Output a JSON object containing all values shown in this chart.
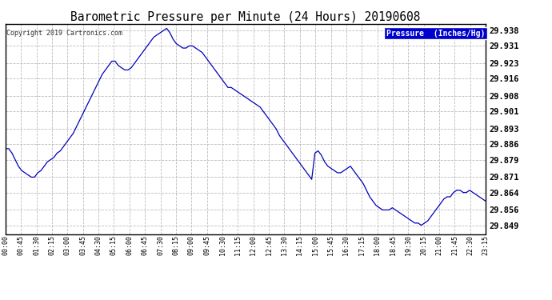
{
  "title": "Barometric Pressure per Minute (24 Hours) 20190608",
  "copyright_text": "Copyright 2019 Cartronics.com",
  "legend_label": "Pressure  (Inches/Hg)",
  "line_color": "#0000bb",
  "background_color": "#ffffff",
  "grid_color": "#bbbbbb",
  "yticks": [
    29.938,
    29.931,
    29.923,
    29.916,
    29.908,
    29.901,
    29.893,
    29.886,
    29.879,
    29.871,
    29.864,
    29.856,
    29.849
  ],
  "ylim": [
    29.845,
    29.941
  ],
  "xtick_labels": [
    "00:00",
    "00:45",
    "01:30",
    "02:15",
    "03:00",
    "03:45",
    "04:30",
    "05:15",
    "06:00",
    "06:45",
    "07:30",
    "08:15",
    "09:00",
    "09:45",
    "10:30",
    "11:15",
    "12:00",
    "12:45",
    "13:30",
    "14:15",
    "15:00",
    "15:45",
    "16:30",
    "17:15",
    "18:00",
    "18:45",
    "19:30",
    "20:15",
    "21:00",
    "21:45",
    "22:30",
    "23:15"
  ],
  "pressure_values": [
    29.884,
    29.884,
    29.882,
    29.879,
    29.876,
    29.874,
    29.873,
    29.872,
    29.871,
    29.871,
    29.873,
    29.874,
    29.876,
    29.878,
    29.879,
    29.88,
    29.882,
    29.883,
    29.885,
    29.887,
    29.889,
    29.891,
    29.894,
    29.897,
    29.9,
    29.903,
    29.906,
    29.909,
    29.912,
    29.915,
    29.918,
    29.92,
    29.922,
    29.924,
    29.924,
    29.922,
    29.921,
    29.92,
    29.92,
    29.921,
    29.923,
    29.925,
    29.927,
    29.929,
    29.931,
    29.933,
    29.935,
    29.936,
    29.937,
    29.938,
    29.939,
    29.937,
    29.934,
    29.932,
    29.931,
    29.93,
    29.93,
    29.931,
    29.931,
    29.93,
    29.929,
    29.928,
    29.926,
    29.924,
    29.922,
    29.92,
    29.918,
    29.916,
    29.914,
    29.912,
    29.912,
    29.911,
    29.91,
    29.909,
    29.908,
    29.907,
    29.906,
    29.905,
    29.904,
    29.903,
    29.901,
    29.899,
    29.897,
    29.895,
    29.893,
    29.89,
    29.888,
    29.886,
    29.884,
    29.882,
    29.88,
    29.878,
    29.876,
    29.874,
    29.872,
    29.87,
    29.882,
    29.883,
    29.881,
    29.878,
    29.876,
    29.875,
    29.874,
    29.873,
    29.873,
    29.874,
    29.875,
    29.876,
    29.874,
    29.872,
    29.87,
    29.868,
    29.865,
    29.862,
    29.86,
    29.858,
    29.857,
    29.856,
    29.856,
    29.856,
    29.857,
    29.856,
    29.855,
    29.854,
    29.853,
    29.852,
    29.851,
    29.85,
    29.85,
    29.849,
    29.85,
    29.851,
    29.853,
    29.855,
    29.857,
    29.859,
    29.861,
    29.862,
    29.862,
    29.864,
    29.865,
    29.865,
    29.864,
    29.864,
    29.865,
    29.864,
    29.863,
    29.862,
    29.861,
    29.86
  ]
}
